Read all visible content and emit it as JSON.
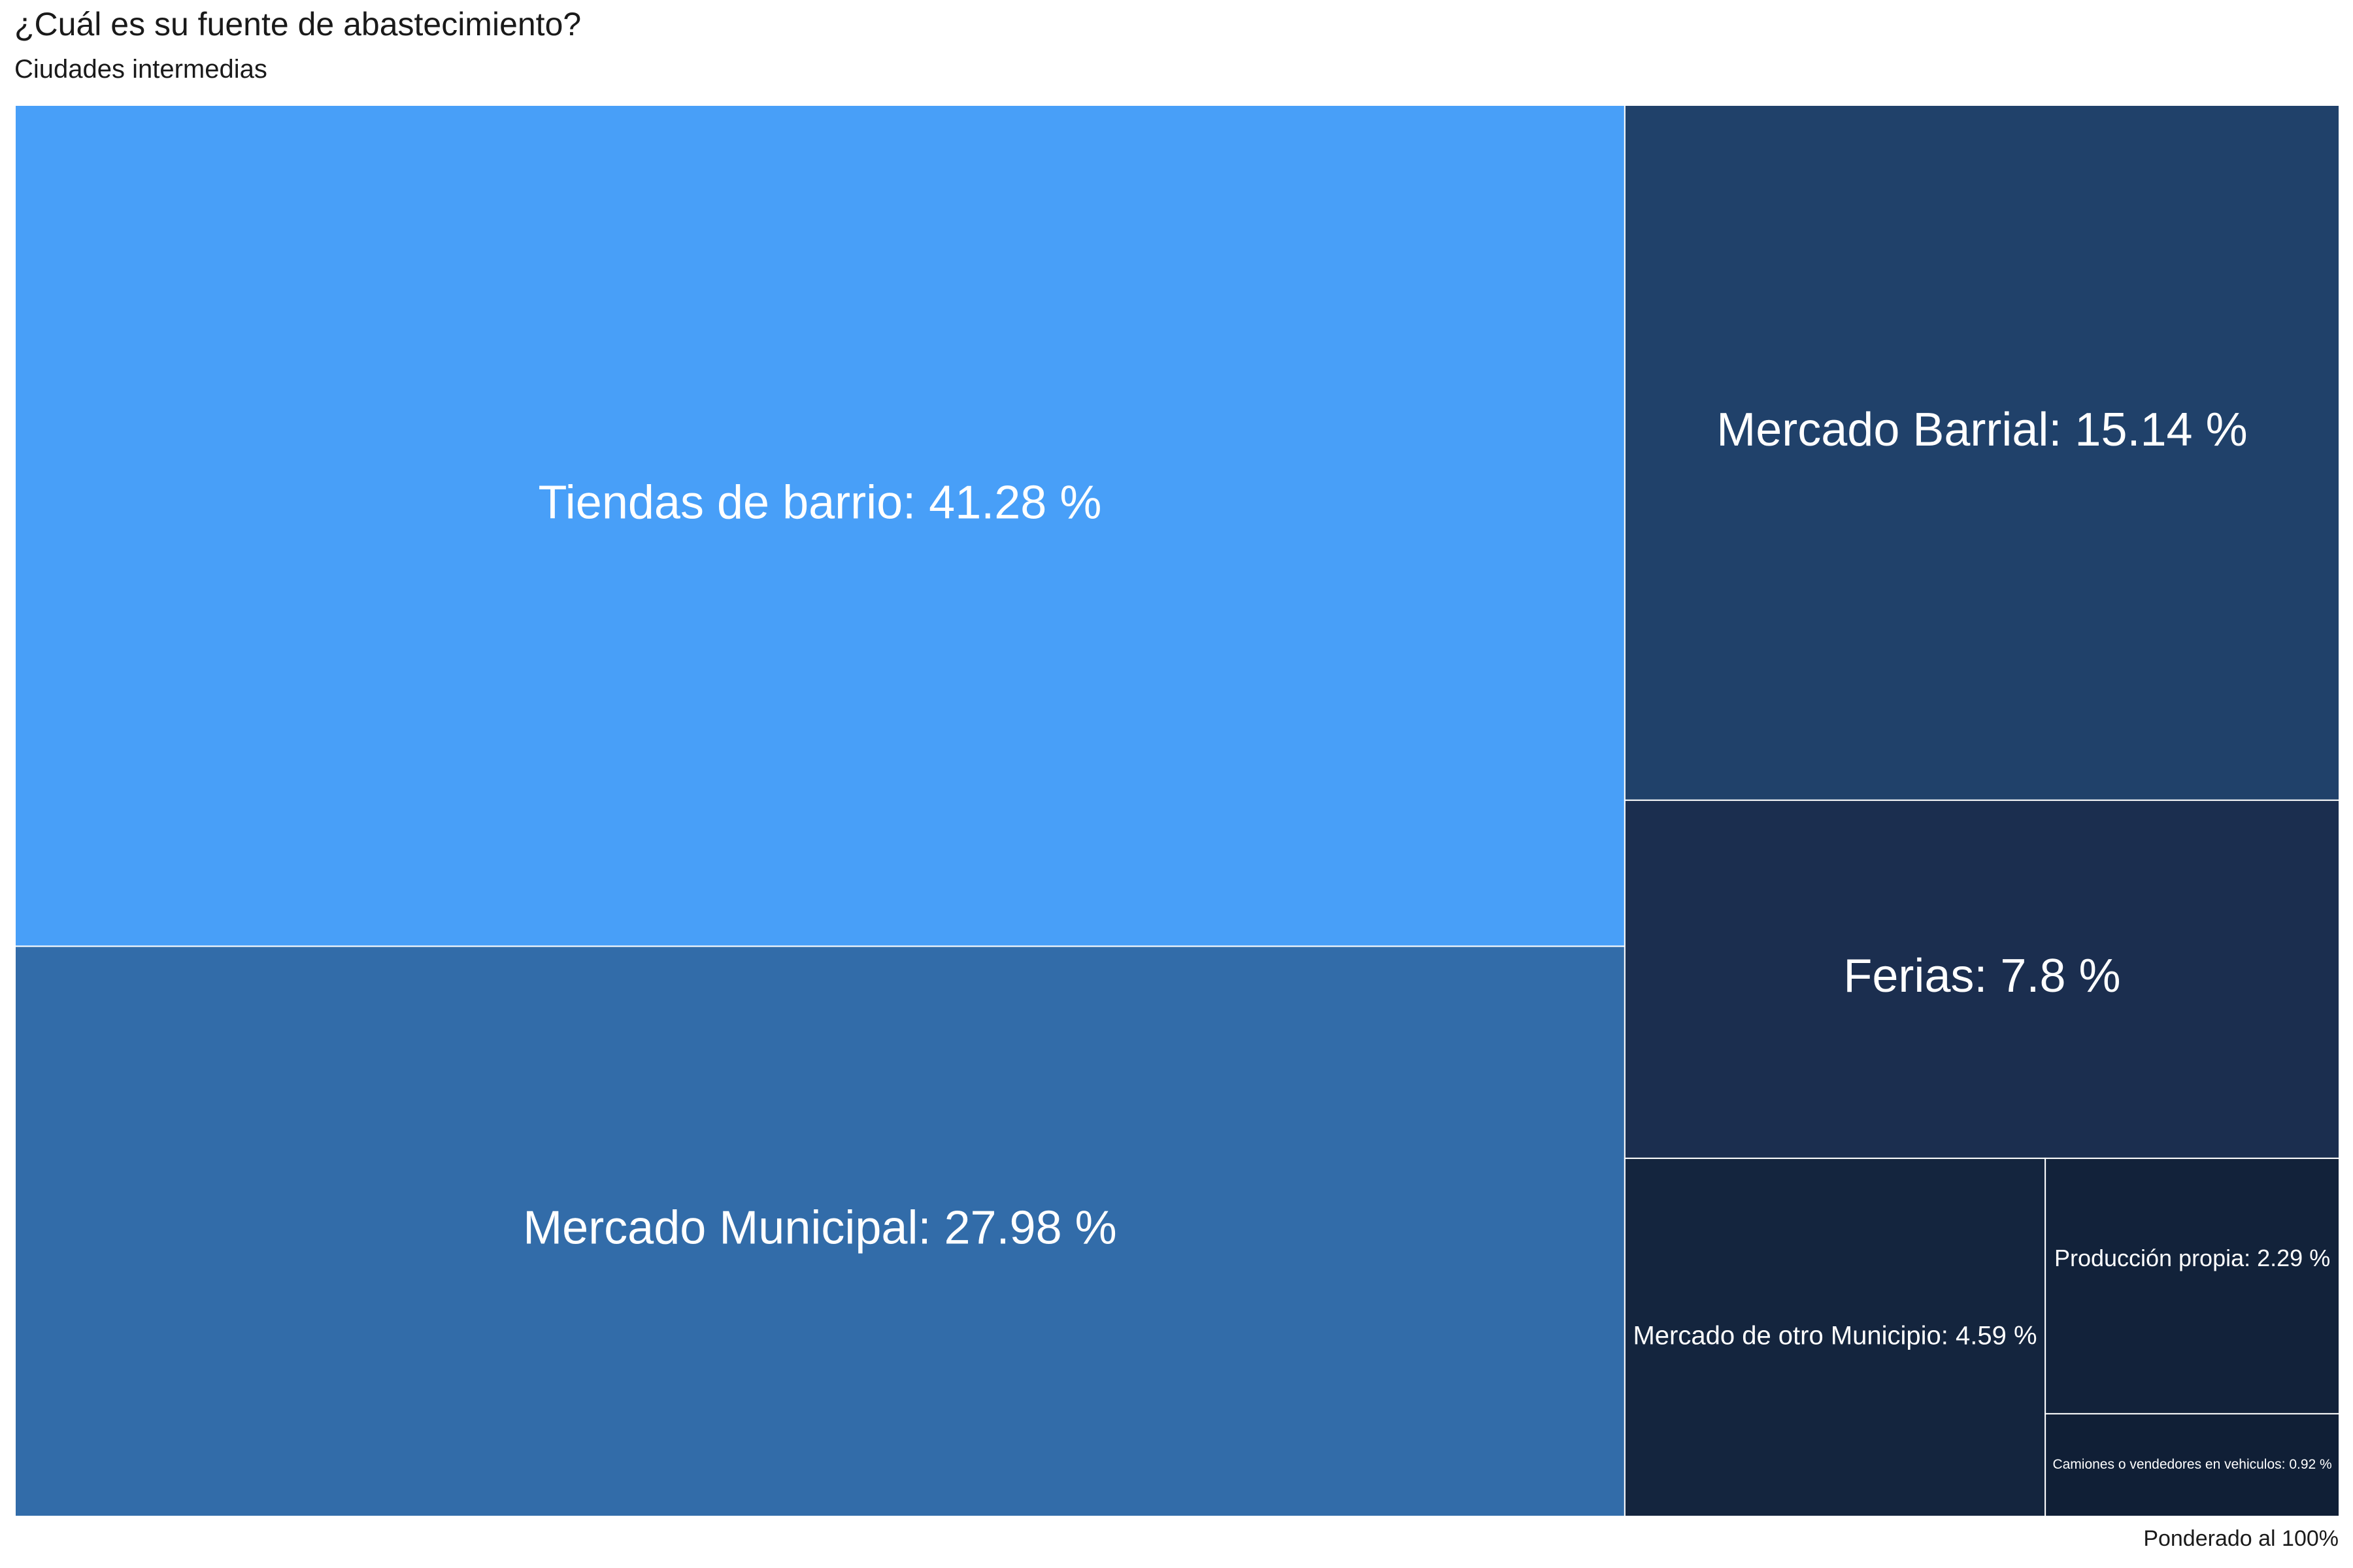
{
  "chart": {
    "title": "¿Cuál es su fuente de abastecimiento?",
    "subtitle": "Ciudades intermedias",
    "caption": "Ponderado al 100%"
  },
  "chart_data": {
    "type": "treemap",
    "title": "¿Cuál es su fuente de abastecimiento?",
    "subtitle": "Ciudades intermedias",
    "caption": "Ponderado al 100%",
    "unit": "%",
    "items": [
      {
        "name": "Tiendas de barrio",
        "value": 41.28,
        "label": "Tiendas de barrio: 41.28 %",
        "color": "#489ff8"
      },
      {
        "name": "Mercado Municipal",
        "value": 27.98,
        "label": "Mercado Municipal: 27.98 %",
        "color": "#326ca9"
      },
      {
        "name": "Mercado Barrial",
        "value": 15.14,
        "label": "Mercado Barrial: 15.14 %",
        "color": "#20416a"
      },
      {
        "name": "Ferias",
        "value": 7.8,
        "label": "Ferias: 7.8 %",
        "color": "#1b2e4f"
      },
      {
        "name": "Mercado de otro Municipio",
        "value": 4.59,
        "label": "Mercado de otro Municipio: 4.59 %",
        "color": "#14253e"
      },
      {
        "name": "Producción propia",
        "value": 2.29,
        "label": "Producción propia: 2.29 %",
        "color": "#12223a"
      },
      {
        "name": "Camiones o vendedores en vehículos",
        "value": 0.92,
        "label": "Camiones o vendedores en vehiculos: 0.92 %",
        "color": "#101f36"
      }
    ]
  }
}
